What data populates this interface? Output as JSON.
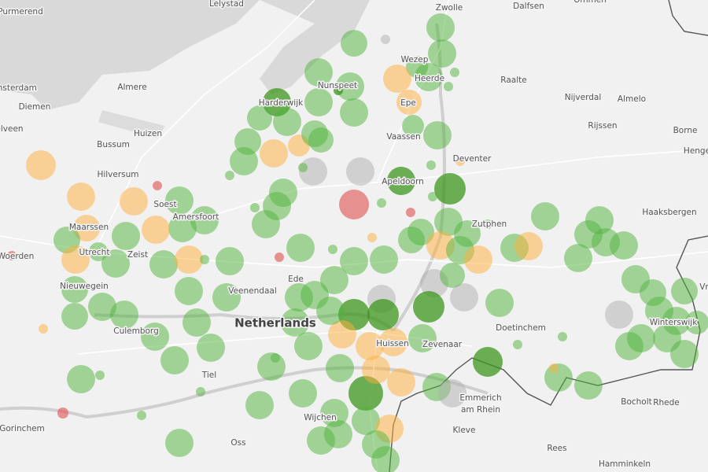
{
  "places": [
    {
      "name": "Lelystad"
    },
    {
      "name": "Zwolle"
    },
    {
      "name": "Dalfsen"
    },
    {
      "name": "Ommen"
    },
    {
      "name": "Purmerend"
    },
    {
      "name": "msterdam"
    },
    {
      "name": "Diemen"
    },
    {
      "name": "Almere"
    },
    {
      "name": "Wezep"
    },
    {
      "name": "Nunspeet"
    },
    {
      "name": "Heerde"
    },
    {
      "name": "Raalte"
    },
    {
      "name": "Harderwijk"
    },
    {
      "name": "Epe"
    },
    {
      "name": "Nijverdal"
    },
    {
      "name": "Almelo"
    },
    {
      "name": "elveen"
    },
    {
      "name": "Huizen"
    },
    {
      "name": "Bussum"
    },
    {
      "name": "Vaassen"
    },
    {
      "name": "Rijssen"
    },
    {
      "name": "Borne"
    },
    {
      "name": "Henge"
    },
    {
      "name": "Hilversum"
    },
    {
      "name": "Deventer"
    },
    {
      "name": "Apeldoorn"
    },
    {
      "name": "Soest"
    },
    {
      "name": "Amersfoort"
    },
    {
      "name": "Haaksbergen"
    },
    {
      "name": "Maarssen"
    },
    {
      "name": "Zutphen"
    },
    {
      "name": "Woerden"
    },
    {
      "name": "Utrecht"
    },
    {
      "name": "Zeist"
    },
    {
      "name": "Nieuwegein"
    },
    {
      "name": "Ede"
    },
    {
      "name": "Veenendaal"
    },
    {
      "name": "Netherlands"
    },
    {
      "name": "Doetinchem"
    },
    {
      "name": "Winterswijk"
    },
    {
      "name": "Culemborg"
    },
    {
      "name": "Huissen"
    },
    {
      "name": "Zevenaar"
    },
    {
      "name": "Tiel"
    },
    {
      "name": "Emmerich"
    },
    {
      "name": "am Rhein"
    },
    {
      "name": "Bocholt"
    },
    {
      "name": "Rhede"
    },
    {
      "name": "Gorinchem"
    },
    {
      "name": "Wijchen"
    },
    {
      "name": "Kleve"
    },
    {
      "name": "Oss"
    },
    {
      "name": "Rees"
    },
    {
      "name": "Hamminkeln"
    },
    {
      "name": "Vr"
    }
  ]
}
